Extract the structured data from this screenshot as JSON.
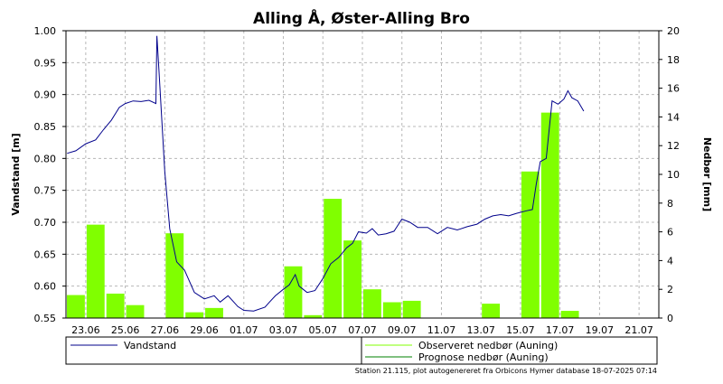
{
  "chart_data": {
    "type": "bar",
    "title": "Alling Å, Øster-Alling Bro",
    "ylabel": "Vandstand [m]",
    "y2label": "Nedbør [mm]",
    "ylim": [
      0.55,
      1.0
    ],
    "y2lim": [
      0,
      20
    ],
    "yticks": [
      "1.00",
      "0.95",
      "0.90",
      "0.85",
      "0.80",
      "0.75",
      "0.70",
      "0.65",
      "0.60",
      "0.55"
    ],
    "y2ticks": [
      "20",
      "18",
      "16",
      "14",
      "12",
      "10",
      "8",
      "6",
      "4",
      "2",
      "0"
    ],
    "xticks": [
      "23.06",
      "25.06",
      "27.06",
      "29.06",
      "01.07",
      "03.07",
      "05.07",
      "07.07",
      "09.07",
      "11.07",
      "13.07",
      "15.07",
      "17.07",
      "19.07",
      "21.07"
    ],
    "x_start": "22.06",
    "x_end": "22.07",
    "grid": true,
    "legend": {
      "left": [
        "Vandstand"
      ],
      "right": [
        "Observeret nedbør (Auning)",
        "Prognose nedbør (Auning)"
      ]
    },
    "colors": {
      "vandstand": "#00008b",
      "observeret": "#80ff00",
      "prognose": "#008000"
    },
    "series": [
      {
        "name": "Observeret nedbør (Auning)",
        "axis": "right",
        "dates": [
          "22.06",
          "23.06",
          "24.06",
          "25.06",
          "26.06",
          "27.06",
          "28.06",
          "29.06",
          "30.06",
          "01.07",
          "02.07",
          "03.07",
          "04.07",
          "05.07",
          "06.07",
          "07.07",
          "08.07",
          "09.07",
          "10.07",
          "11.07",
          "12.07",
          "13.07",
          "14.07",
          "15.07",
          "16.07",
          "17.07",
          "18.07"
        ],
        "values": [
          1.6,
          6.5,
          1.7,
          0.9,
          0.0,
          5.9,
          0.4,
          0.7,
          0.0,
          0.0,
          0.0,
          3.6,
          0.2,
          8.3,
          5.4,
          2.0,
          1.1,
          1.2,
          0.0,
          0.0,
          0.0,
          1.0,
          0.0,
          10.2,
          14.3,
          0.5,
          0.0
        ]
      },
      {
        "name": "Vandstand",
        "axis": "left",
        "dates": [
          "22.06",
          "22.50",
          "23.00",
          "23.50",
          "23.90",
          "24.30",
          "24.70",
          "25.00",
          "25.40",
          "25.80",
          "26.20",
          "26.55",
          "26.60",
          "26.70",
          "27.00",
          "27.25",
          "27.60",
          "28.00",
          "28.50",
          "29.00",
          "29.50",
          "29.80",
          "30.20",
          "30.70",
          "31.00",
          "01.07 12h",
          "02.07",
          "02.30",
          "02.60",
          "03.00",
          "03.30",
          "03.60",
          "03.80",
          "04.20",
          "04.60",
          "05.00",
          "05.40",
          "05.80",
          "06.20",
          "06.50",
          "06.80",
          "07.20",
          "07.50",
          "07.80",
          "08.20",
          "08.60",
          "09.00",
          "09.40",
          "09.80",
          "10.30",
          "10.80",
          "11.30",
          "11.80",
          "12.30",
          "12.80",
          "13.20",
          "13.60",
          "14.00",
          "14.40",
          "14.80",
          "15.30",
          "15.60",
          "15.80",
          "16.00",
          "16.30",
          "16.60",
          "16.90",
          "17.20",
          "17.40",
          "17.60",
          "17.90",
          "18.20"
        ],
        "values": [
          0.808,
          0.812,
          0.823,
          0.829,
          0.845,
          0.86,
          0.88,
          0.886,
          0.89,
          0.889,
          0.891,
          0.886,
          0.992,
          0.94,
          0.78,
          0.69,
          0.638,
          0.625,
          0.59,
          0.58,
          0.585,
          0.575,
          0.585,
          0.568,
          0.562,
          0.561,
          0.567,
          0.575,
          0.585,
          0.595,
          0.602,
          0.618,
          0.6,
          0.59,
          0.593,
          0.612,
          0.635,
          0.645,
          0.66,
          0.667,
          0.685,
          0.683,
          0.69,
          0.68,
          0.682,
          0.686,
          0.705,
          0.7,
          0.692,
          0.692,
          0.682,
          0.692,
          0.688,
          0.693,
          0.697,
          0.705,
          0.71,
          0.712,
          0.71,
          0.714,
          0.718,
          0.72,
          0.76,
          0.795,
          0.8,
          0.89,
          0.885,
          0.893,
          0.906,
          0.895,
          0.89,
          0.874
        ]
      }
    ],
    "footer": "Station 21.115, plot autogenereret fra Orbicons Hymer database 18-07-2025 07:14"
  }
}
